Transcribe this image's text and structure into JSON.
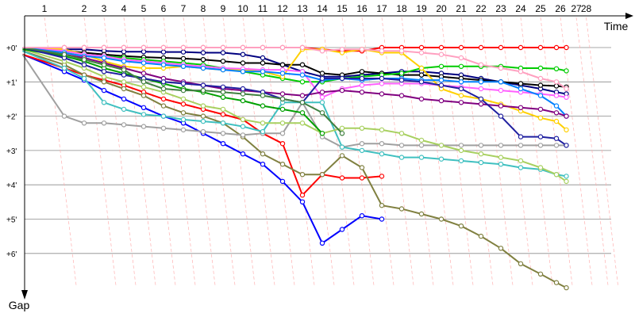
{
  "chart_data": {
    "type": "line",
    "x_axis_title": "Time",
    "y_axis_title": "Gap",
    "laps": [
      1,
      2,
      3,
      4,
      5,
      6,
      7,
      8,
      9,
      10,
      11,
      12,
      13,
      14,
      15,
      16,
      17,
      18,
      19,
      20,
      21,
      22,
      23,
      24,
      25,
      26,
      27,
      28
    ],
    "lap_positions": [
      0,
      2,
      3,
      4,
      5,
      6,
      7,
      8,
      9,
      10,
      11,
      12,
      13,
      14,
      15,
      16,
      17,
      18,
      19,
      20,
      21,
      22,
      23,
      24,
      25,
      26,
      26.8,
      27.3
    ],
    "lap_labels": [
      "1",
      "2",
      "3",
      "4",
      "5",
      "6",
      "7",
      "8",
      "9",
      "10",
      "11",
      "12",
      "13",
      "14",
      "15",
      "16",
      "17",
      "18",
      "19",
      "20",
      "21",
      "22",
      "23",
      "24",
      "25",
      "26",
      "27",
      "28"
    ],
    "ytick_labels": [
      "+0'",
      "+1'",
      "+2'",
      "+3'",
      "+4'",
      "+5'",
      "+6'"
    ],
    "ytick_values": [
      0,
      1,
      2,
      3,
      4,
      5,
      6
    ],
    "y_range": [
      0,
      7.3
    ],
    "x_range": [
      -0.2,
      30
    ],
    "series": [
      {
        "color": "#ff0000",
        "values": [
          0,
          0,
          0,
          0,
          0,
          0,
          0,
          0,
          0,
          0,
          0,
          0,
          0,
          0,
          0.05,
          0.1,
          0.1,
          0,
          0,
          0,
          0,
          0,
          0,
          0,
          0,
          0,
          0,
          0
        ],
        "dotted": true
      },
      {
        "color": "#000080",
        "values": [
          0,
          0.05,
          0.05,
          0.1,
          0.12,
          0.12,
          0.13,
          0.13,
          0.15,
          0.15,
          0.2,
          0.3,
          0.5,
          0.7,
          0.85,
          0.85,
          0.8,
          0.75,
          0.7,
          0.7,
          0.75,
          0.8,
          0.9,
          1.0,
          1.1,
          1.2,
          1.3,
          1.35
        ]
      },
      {
        "color": "#000000",
        "values": [
          0,
          0.1,
          0.15,
          0.2,
          0.25,
          0.28,
          0.3,
          0.32,
          0.35,
          0.4,
          0.45,
          0.45,
          0.5,
          0.5,
          0.75,
          0.8,
          0.7,
          0.75,
          0.8,
          0.8,
          0.85,
          0.9,
          0.95,
          1.0,
          1.05,
          1.1,
          1.12,
          1.15
        ]
      },
      {
        "color": "#00cc00",
        "values": [
          0,
          0.1,
          0.2,
          0.25,
          0.3,
          0.35,
          0.4,
          0.45,
          0.5,
          0.6,
          0.7,
          0.8,
          0.9,
          1.0,
          1.0,
          0.9,
          0.85,
          0.8,
          0.75,
          0.6,
          0.55,
          0.55,
          0.55,
          0.55,
          0.6,
          0.6,
          0.62,
          0.68
        ]
      },
      {
        "color": "#0000ff",
        "values": [
          0.2,
          0.7,
          0.95,
          1.25,
          1.5,
          1.75,
          2.0,
          2.2,
          2.5,
          2.8,
          3.1,
          3.4,
          3.9,
          4.5,
          5.7,
          5.3,
          4.9,
          5.0
        ]
      },
      {
        "color": "#ff0000",
        "values": [
          0.2,
          0.6,
          0.8,
          0.95,
          1.1,
          1.3,
          1.5,
          1.65,
          1.8,
          1.95,
          2.1,
          2.5,
          2.8,
          4.3,
          3.7,
          3.8,
          3.8,
          3.75
        ]
      },
      {
        "color": "#808040",
        "values": [
          0.1,
          0.5,
          0.8,
          1.0,
          1.2,
          1.4,
          1.7,
          1.9,
          2.0,
          2.2,
          2.6,
          3.1,
          3.4,
          3.7,
          3.7,
          3.15,
          3.5,
          4.6,
          4.7,
          4.85,
          5.0,
          5.2,
          5.5,
          5.85,
          6.3,
          6.6,
          6.85,
          7.0
        ]
      },
      {
        "color": "#a0a0a0",
        "values": [
          0.2,
          2.0,
          2.2,
          2.2,
          2.25,
          2.3,
          2.35,
          2.4,
          2.45,
          2.5,
          2.55,
          2.5,
          2.5,
          1.6,
          2.6,
          2.9,
          2.8,
          2.8,
          2.85,
          2.85,
          2.85,
          2.85,
          2.85,
          2.85,
          2.85,
          2.85,
          2.85,
          2.85
        ]
      },
      {
        "color": "#40c0c0",
        "values": [
          0.1,
          0.6,
          0.9,
          1.6,
          1.8,
          1.95,
          2.0,
          2.1,
          2.15,
          2.2,
          2.3,
          2.45,
          1.6,
          1.6,
          1.6,
          2.9,
          3.0,
          3.1,
          3.2,
          3.2,
          3.25,
          3.3,
          3.35,
          3.4,
          3.5,
          3.55,
          3.7,
          3.75
        ]
      },
      {
        "color": "#a8d060",
        "values": [
          0.05,
          0.4,
          0.6,
          0.85,
          1.0,
          1.15,
          1.3,
          1.5,
          1.7,
          1.8,
          2.1,
          2.2,
          2.2,
          2.2,
          2.5,
          2.35,
          2.35,
          2.4,
          2.5,
          2.7,
          2.85,
          3.0,
          3.1,
          3.2,
          3.3,
          3.5,
          3.7,
          3.9
        ]
      },
      {
        "color": "#ffd000",
        "values": [
          0,
          0.05,
          0.2,
          0.4,
          0.55,
          0.6,
          0.6,
          0.55,
          0.6,
          0.65,
          0.65,
          0.7,
          0.85,
          0.05,
          0.05,
          0.15,
          0.05,
          0.15,
          0.15,
          0.6,
          1.2,
          1.4,
          1.5,
          1.65,
          1.85,
          2.05,
          2.15,
          2.4
        ]
      },
      {
        "color": "#ff60ff",
        "values": [
          0,
          0.1,
          0.2,
          0.25,
          0.35,
          0.4,
          0.45,
          0.5,
          0.55,
          0.6,
          0.62,
          0.65,
          0.65,
          0.7,
          1.45,
          1.2,
          1.1,
          1.05,
          1.05,
          1.05,
          1.1,
          1.15,
          1.2,
          1.25,
          1.3,
          1.35,
          1.4,
          1.45
        ]
      },
      {
        "color": "#0080ff",
        "values": [
          0,
          0.15,
          0.25,
          0.3,
          0.4,
          0.45,
          0.5,
          0.55,
          0.6,
          0.65,
          0.7,
          0.7,
          0.75,
          0.8,
          0.95,
          0.9,
          0.95,
          0.9,
          0.9,
          0.95,
          0.95,
          1.0,
          1.0,
          1.0,
          1.2,
          1.4,
          1.7,
          2.0
        ]
      },
      {
        "color": "#800080",
        "values": [
          0.05,
          0.2,
          0.3,
          0.45,
          0.6,
          0.75,
          0.9,
          1.0,
          1.1,
          1.2,
          1.25,
          1.3,
          1.35,
          1.4,
          1.3,
          1.25,
          1.3,
          1.35,
          1.4,
          1.5,
          1.55,
          1.6,
          1.65,
          1.7,
          1.75,
          1.8,
          1.9,
          2.0
        ]
      },
      {
        "color": "#00a000",
        "values": [
          0.05,
          0.25,
          0.4,
          0.6,
          0.75,
          0.9,
          1.05,
          1.2,
          1.3,
          1.45,
          1.55,
          1.7,
          1.8,
          1.9,
          2.5
        ]
      },
      {
        "color": "#2020a0",
        "values": [
          0,
          0.3,
          0.5,
          0.7,
          0.8,
          0.9,
          1.0,
          1.05,
          1.1,
          1.15,
          1.2,
          1.3,
          1.5,
          1.6,
          0.9,
          0.9,
          0.9,
          0.9,
          0.95,
          1.0,
          1.1,
          1.2,
          1.5,
          2.0,
          2.6,
          2.6,
          2.65,
          2.85
        ]
      },
      {
        "color": "#408040",
        "values": [
          0,
          0.2,
          0.35,
          0.5,
          0.65,
          1.0,
          1.2,
          1.25,
          1.25,
          1.3,
          1.35,
          1.4,
          1.5,
          1.6,
          1.9,
          2.5
        ]
      },
      {
        "color": "#ffa0c0",
        "values": [
          0,
          0,
          0,
          0,
          0,
          0,
          0,
          0,
          0,
          0,
          0,
          0,
          0,
          0,
          0.1,
          0.05,
          0.05,
          0.1,
          0.1,
          0.15,
          0.2,
          0.3,
          0.5,
          0.6,
          0.7,
          0.9,
          1.0,
          1.2
        ]
      }
    ]
  }
}
